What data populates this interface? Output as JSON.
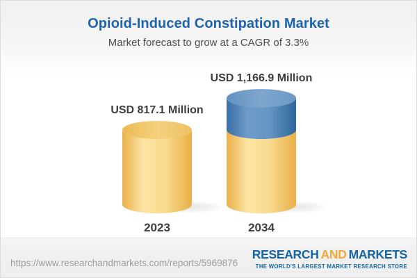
{
  "chart_data": {
    "type": "bar",
    "title": "Opioid-Induced Constipation Market",
    "subtitle": "Market forecast to grow at a CAGR of 3.3%",
    "unit": "USD Million",
    "cagr_pct": 3.3,
    "categories": [
      "2023",
      "2034"
    ],
    "values": [
      817.1,
      1166.9
    ],
    "value_labels": [
      "USD 817.1 Million",
      "USD 1,166.9 Million"
    ],
    "grid": false,
    "axes_visible": false,
    "legend": false,
    "bar_style": "3d-cylinder",
    "bars": [
      {
        "category": "2023",
        "label": "USD 817.1 Million",
        "segments": [
          {
            "value": 817.1,
            "palette": "gold"
          }
        ]
      },
      {
        "category": "2034",
        "label": "USD 1,166.9 Million",
        "segments": [
          {
            "value": 817.1,
            "palette": "gold"
          },
          {
            "value": 349.8,
            "palette": "blue"
          }
        ]
      }
    ],
    "palettes": {
      "gold": {
        "body": [
          "#E9B04A",
          "#FCE5A4",
          "#F8DA8F",
          "#E9B047"
        ],
        "top": [
          "#EDBA52",
          "#F5D07E",
          "#EEC066"
        ]
      },
      "blue": {
        "body": [
          "#3A6EA5",
          "#6E9CC9",
          "#6495C3",
          "#2F669C"
        ],
        "top": [
          "#6392C1",
          "#7FA7CE",
          "#6B98C5"
        ]
      }
    },
    "label_color": "#3E3E3E"
  },
  "footer": {
    "url": "https://www.researchandmarkets.com/reports/5969876",
    "logo": {
      "word1": "RESEARCH",
      "word2": "AND",
      "word3": "MARKETS",
      "tagline": "THE WORLD'S LARGEST MARKET RESEARCH STORE",
      "blue": "#1565A5",
      "gold": "#F2A93B"
    }
  },
  "colors": {
    "title_blue": "#1E63AC",
    "subtitle_gray": "#4D4D4D",
    "text_dark": "#3E3E3E",
    "url_gray": "#9C9C9C",
    "footer_bg": "#F0F0F0",
    "page_top_gray": "#F1F1F1"
  }
}
